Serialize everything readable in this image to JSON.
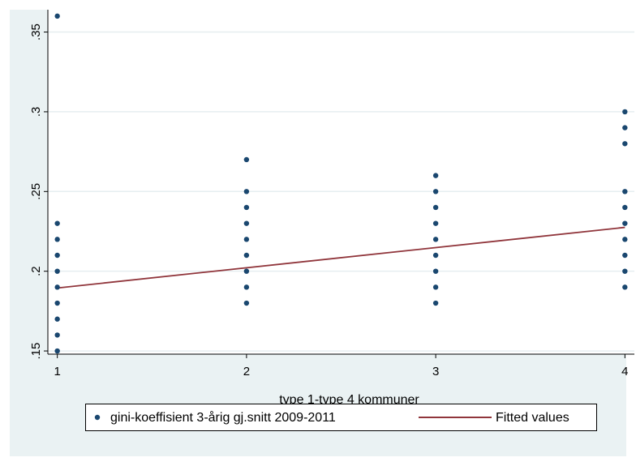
{
  "chart_data": {
    "type": "scatter",
    "title": "",
    "xlabel": "type 1-type 4 kommuner",
    "ylabel": "",
    "xlim": [
      0.95,
      4.05
    ],
    "ylim": [
      0.148,
      0.364
    ],
    "xticks": [
      1,
      2,
      3,
      4
    ],
    "xtick_labels": [
      "1",
      "2",
      "3",
      "4"
    ],
    "yticks": [
      0.15,
      0.2,
      0.25,
      0.3,
      0.35
    ],
    "ytick_labels": [
      ".15",
      ".2",
      ".25",
      ".3",
      ".35"
    ],
    "grid": true,
    "legend_position": "bottom",
    "series": [
      {
        "name": "gini-koeffisient 3-årig gj.snitt 2009-2011",
        "kind": "scatter",
        "color": "#1a476f",
        "points": [
          [
            1,
            0.15
          ],
          [
            1,
            0.16
          ],
          [
            1,
            0.17
          ],
          [
            1,
            0.18
          ],
          [
            1,
            0.19
          ],
          [
            1,
            0.2
          ],
          [
            1,
            0.21
          ],
          [
            1,
            0.22
          ],
          [
            1,
            0.23
          ],
          [
            1,
            0.36
          ],
          [
            2,
            0.18
          ],
          [
            2,
            0.19
          ],
          [
            2,
            0.2
          ],
          [
            2,
            0.21
          ],
          [
            2,
            0.22
          ],
          [
            2,
            0.23
          ],
          [
            2,
            0.24
          ],
          [
            2,
            0.25
          ],
          [
            2,
            0.27
          ],
          [
            3,
            0.18
          ],
          [
            3,
            0.19
          ],
          [
            3,
            0.2
          ],
          [
            3,
            0.21
          ],
          [
            3,
            0.22
          ],
          [
            3,
            0.23
          ],
          [
            3,
            0.24
          ],
          [
            3,
            0.25
          ],
          [
            3,
            0.26
          ],
          [
            4,
            0.19
          ],
          [
            4,
            0.2
          ],
          [
            4,
            0.21
          ],
          [
            4,
            0.22
          ],
          [
            4,
            0.23
          ],
          [
            4,
            0.24
          ],
          [
            4,
            0.25
          ],
          [
            4,
            0.28
          ],
          [
            4,
            0.29
          ],
          [
            4,
            0.3
          ]
        ]
      },
      {
        "name": "Fitted values",
        "kind": "line",
        "color": "#90353b",
        "points": [
          [
            1,
            0.1895
          ],
          [
            4,
            0.2275
          ]
        ]
      }
    ]
  }
}
